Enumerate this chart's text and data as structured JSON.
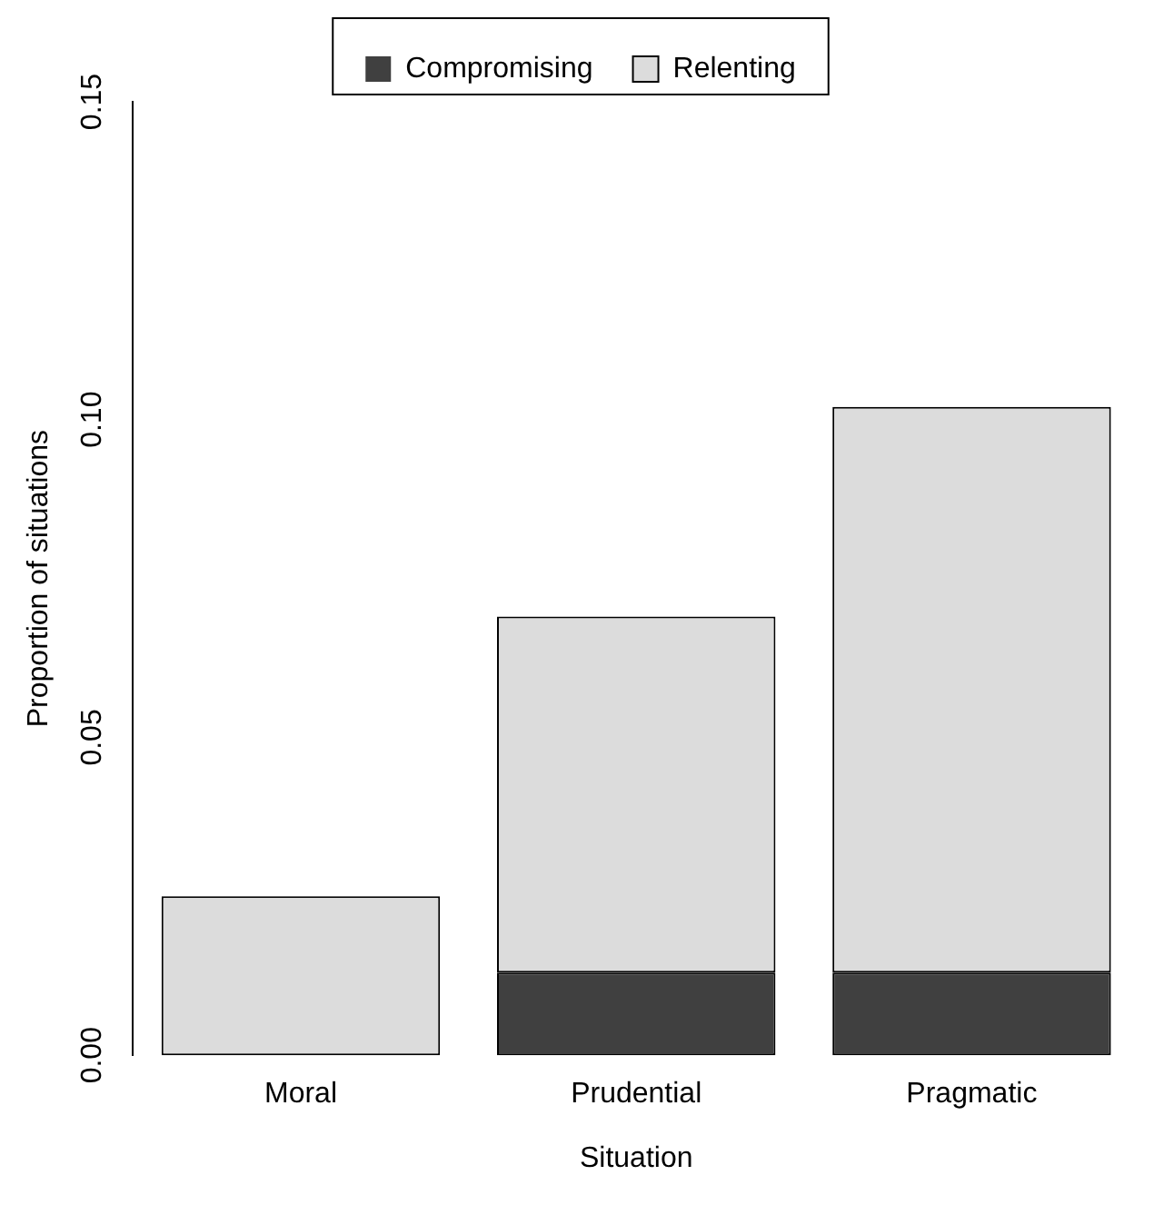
{
  "chart_data": {
    "type": "bar",
    "stacked": true,
    "xlabel": "Situation",
    "ylabel": "Proportion of situations",
    "categories": [
      "Moral",
      "Prudential",
      "Pragmatic"
    ],
    "series": [
      {
        "name": "Compromising",
        "color": "#404040",
        "values": [
          0,
          0.013,
          0.013
        ]
      },
      {
        "name": "Relenting",
        "color": "#dcdcdc",
        "values": [
          0.025,
          0.056,
          0.089
        ]
      }
    ],
    "ylim": [
      0,
      0.15
    ],
    "yticks": [
      {
        "value": 0,
        "label": "0.00"
      },
      {
        "value": 0.05,
        "label": "0.05"
      },
      {
        "value": 0.1,
        "label": "0.10"
      },
      {
        "value": 0.15,
        "label": "0.15"
      }
    ],
    "grid": false,
    "legend": "top"
  }
}
